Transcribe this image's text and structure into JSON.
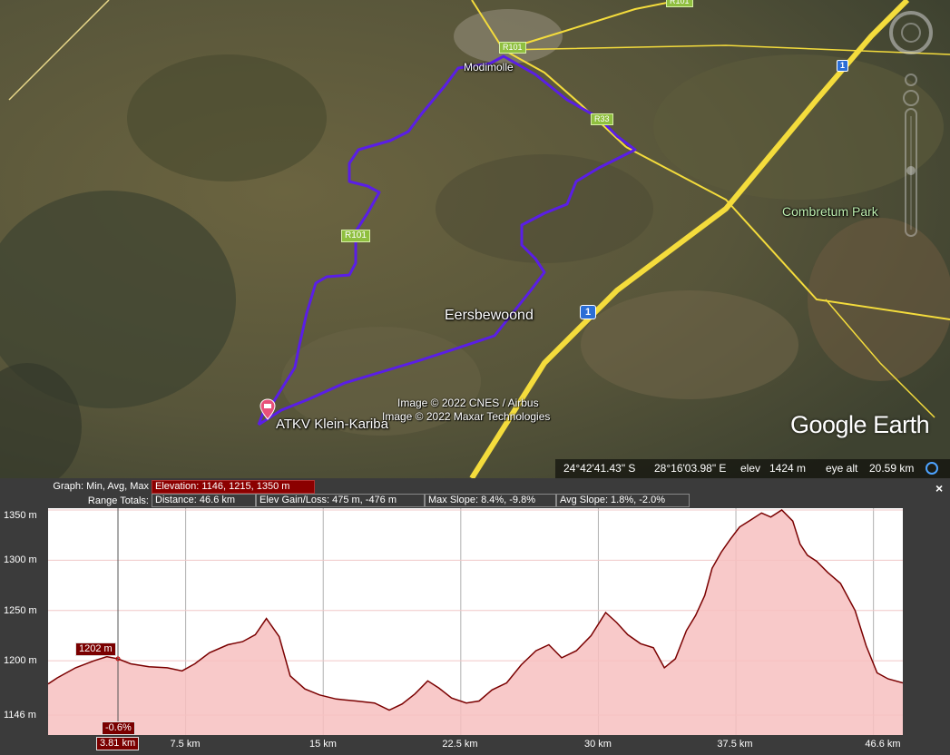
{
  "map": {
    "places": {
      "modimolle": "Modimolle",
      "eersbewoond": "Eersbewoond",
      "combretum_park": "Combretum Park",
      "atkv": "ATKV Klein-Kariba"
    },
    "road_shields": {
      "r101_top": "R101",
      "r101_left": "R101",
      "r33": "R33",
      "n1_top": "1",
      "n1_mid": "1",
      "top_edge": "R101"
    },
    "credits": {
      "line1": "Image © 2022 CNES / Airbus",
      "line2": "Image © 2022 Maxar Technologies"
    },
    "brand": "Google Earth",
    "status": {
      "lat": "24°42'41.43\" S",
      "lon": "28°16'03.98\" E",
      "elev_label": "elev",
      "elev_value": "1424 m",
      "eye_alt_label": "eye alt",
      "eye_alt_value": "20.59 km"
    },
    "colors": {
      "path": "#5a1ee6",
      "road": "#f4dc3c",
      "pin": "#e8507a"
    }
  },
  "profile": {
    "graph_label": "Graph: Min, Avg, Max",
    "elevation_stats": "Elevation: 1146, 1215, 1350 m",
    "range_label": "Range Totals:",
    "distance": "Distance: 46.6 km",
    "elev_gain_loss": "Elev Gain/Loss: 475 m, -476 m",
    "max_slope": "Max Slope: 8.4%, -9.8%",
    "avg_slope": "Avg Slope: 1.8%, -2.0%",
    "close_label": "×",
    "cursor_elev": "1202 m",
    "cursor_slope": "-0.6%",
    "cursor_dist": "3.81 km",
    "colors": {
      "line": "#7a0000",
      "fill": "#f7c0c0",
      "accent": "#8b0000"
    }
  },
  "chart_data": {
    "type": "area",
    "title": "",
    "xlabel": "",
    "ylabel": "",
    "xlim": [
      0,
      46.6
    ],
    "ylim": [
      1146,
      1350
    ],
    "x_ticks": [
      "7.5 km",
      "15 km",
      "22.5 km",
      "30 km",
      "37.5 km",
      "46.6 km"
    ],
    "y_ticks": [
      "1350 m",
      "1300 m",
      "1250 m",
      "1200 m",
      "1146 m"
    ],
    "grid": true,
    "series": [
      {
        "x": [
          0,
          0.5,
          1.5,
          2.5,
          3.2,
          3.81,
          4.5,
          5.5,
          6.5,
          7.3,
          8.0,
          8.8,
          9.8,
          10.6,
          11.3,
          11.9,
          12.6,
          13.2,
          14.0,
          14.8,
          15.7,
          16.8,
          17.8,
          18.6,
          19.3,
          20.0,
          20.7,
          21.3,
          22.0,
          22.8,
          23.5,
          24.2,
          25.0,
          25.8,
          26.6,
          27.3,
          28.0,
          28.8,
          29.6,
          30.4,
          31.0,
          31.6,
          32.3,
          33.0,
          33.6,
          34.2,
          34.8,
          35.3,
          35.8,
          36.2,
          36.7,
          37.2,
          37.7,
          38.3,
          38.9,
          39.4,
          40.0,
          40.6,
          41.0,
          41.4,
          41.9,
          42.5,
          43.2,
          44.0,
          44.6,
          45.2,
          45.8,
          46.6
        ],
        "y": [
          1177,
          1183,
          1193,
          1200,
          1204,
          1202,
          1197,
          1194,
          1193,
          1190,
          1197,
          1208,
          1216,
          1219,
          1226,
          1242,
          1224,
          1185,
          1172,
          1166,
          1162,
          1160,
          1158,
          1151,
          1157,
          1167,
          1180,
          1173,
          1163,
          1158,
          1160,
          1171,
          1178,
          1196,
          1210,
          1216,
          1203,
          1210,
          1225,
          1248,
          1238,
          1226,
          1217,
          1213,
          1193,
          1202,
          1230,
          1245,
          1265,
          1292,
          1308,
          1321,
          1333,
          1340,
          1347,
          1343,
          1350,
          1339,
          1316,
          1305,
          1299,
          1288,
          1277,
          1250,
          1215,
          1188,
          1182,
          1178
        ]
      }
    ]
  }
}
